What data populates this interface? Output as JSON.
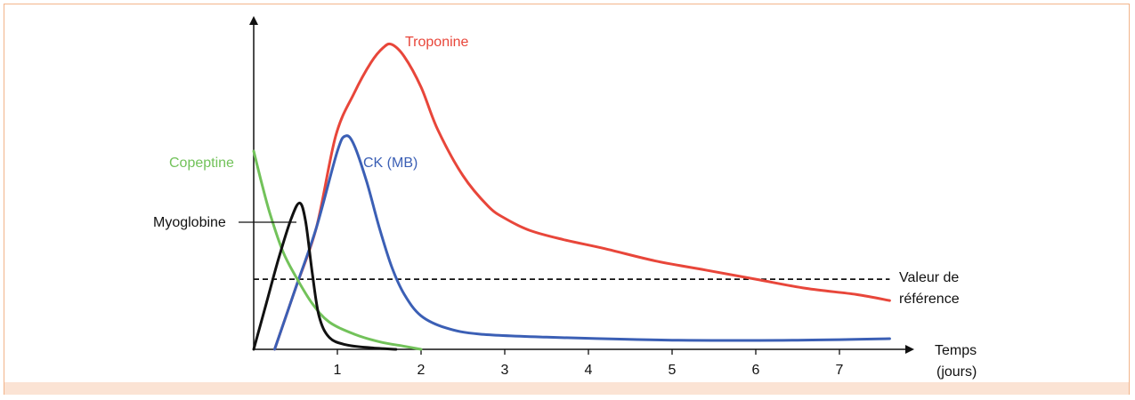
{
  "chart_data": {
    "type": "line",
    "title": "",
    "xlabel": "Temps\n(jours)",
    "ylabel": "",
    "xlim": [
      0,
      7.6
    ],
    "ylim": [
      0,
      100
    ],
    "xticks": [
      1,
      2,
      3,
      4,
      5,
      6,
      7
    ],
    "grid": false,
    "reference": {
      "label_line1": "Valeur de",
      "label_line2": "référence",
      "y": 23
    },
    "series": [
      {
        "name": "Troponine",
        "color": "#e8463a",
        "points": [
          [
            0.25,
            0
          ],
          [
            0.5,
            20
          ],
          [
            0.75,
            40
          ],
          [
            0.98,
            70
          ],
          [
            1.2,
            84
          ],
          [
            1.4,
            94
          ],
          [
            1.55,
            99
          ],
          [
            1.65,
            100
          ],
          [
            1.8,
            96
          ],
          [
            2.0,
            86
          ],
          [
            2.2,
            72
          ],
          [
            2.5,
            57
          ],
          [
            2.8,
            47
          ],
          [
            3.0,
            43
          ],
          [
            3.3,
            39
          ],
          [
            3.7,
            36
          ],
          [
            4.2,
            33
          ],
          [
            4.8,
            29
          ],
          [
            5.4,
            26
          ],
          [
            6.0,
            23
          ],
          [
            6.6,
            20
          ],
          [
            7.2,
            18
          ],
          [
            7.6,
            16
          ]
        ]
      },
      {
        "name": "CK (MB)",
        "color": "#3b5fb5",
        "points": [
          [
            0.25,
            0
          ],
          [
            0.5,
            20
          ],
          [
            0.75,
            40
          ],
          [
            1.0,
            65
          ],
          [
            1.1,
            70
          ],
          [
            1.2,
            67
          ],
          [
            1.35,
            55
          ],
          [
            1.5,
            40
          ],
          [
            1.65,
            27
          ],
          [
            1.8,
            18
          ],
          [
            2.0,
            11
          ],
          [
            2.3,
            7
          ],
          [
            2.7,
            5
          ],
          [
            3.5,
            4
          ],
          [
            5.0,
            3
          ],
          [
            6.5,
            3
          ],
          [
            7.6,
            3.5
          ]
        ]
      },
      {
        "name": "Copeptine",
        "color": "#72c25a",
        "points": [
          [
            0,
            65
          ],
          [
            0.1,
            54
          ],
          [
            0.2,
            44
          ],
          [
            0.35,
            32
          ],
          [
            0.5,
            24
          ],
          [
            0.7,
            15
          ],
          [
            0.9,
            9
          ],
          [
            1.2,
            5
          ],
          [
            1.5,
            2.5
          ],
          [
            1.8,
            1
          ],
          [
            2.0,
            0
          ]
        ]
      },
      {
        "name": "Myoglobine",
        "color": "#111111",
        "points": [
          [
            0,
            0
          ],
          [
            0.15,
            15
          ],
          [
            0.3,
            30
          ],
          [
            0.45,
            43
          ],
          [
            0.55,
            48
          ],
          [
            0.62,
            42
          ],
          [
            0.7,
            25
          ],
          [
            0.78,
            11
          ],
          [
            0.9,
            4
          ],
          [
            1.1,
            1.5
          ],
          [
            1.4,
            0.5
          ],
          [
            1.7,
            0
          ]
        ]
      }
    ],
    "labels": {
      "troponine": "Troponine",
      "ck": "CK (MB)",
      "copeptine": "Copeptine",
      "myoglobine": "Myoglobine",
      "x_line1": "Temps",
      "x_line2": "(jours)"
    }
  }
}
